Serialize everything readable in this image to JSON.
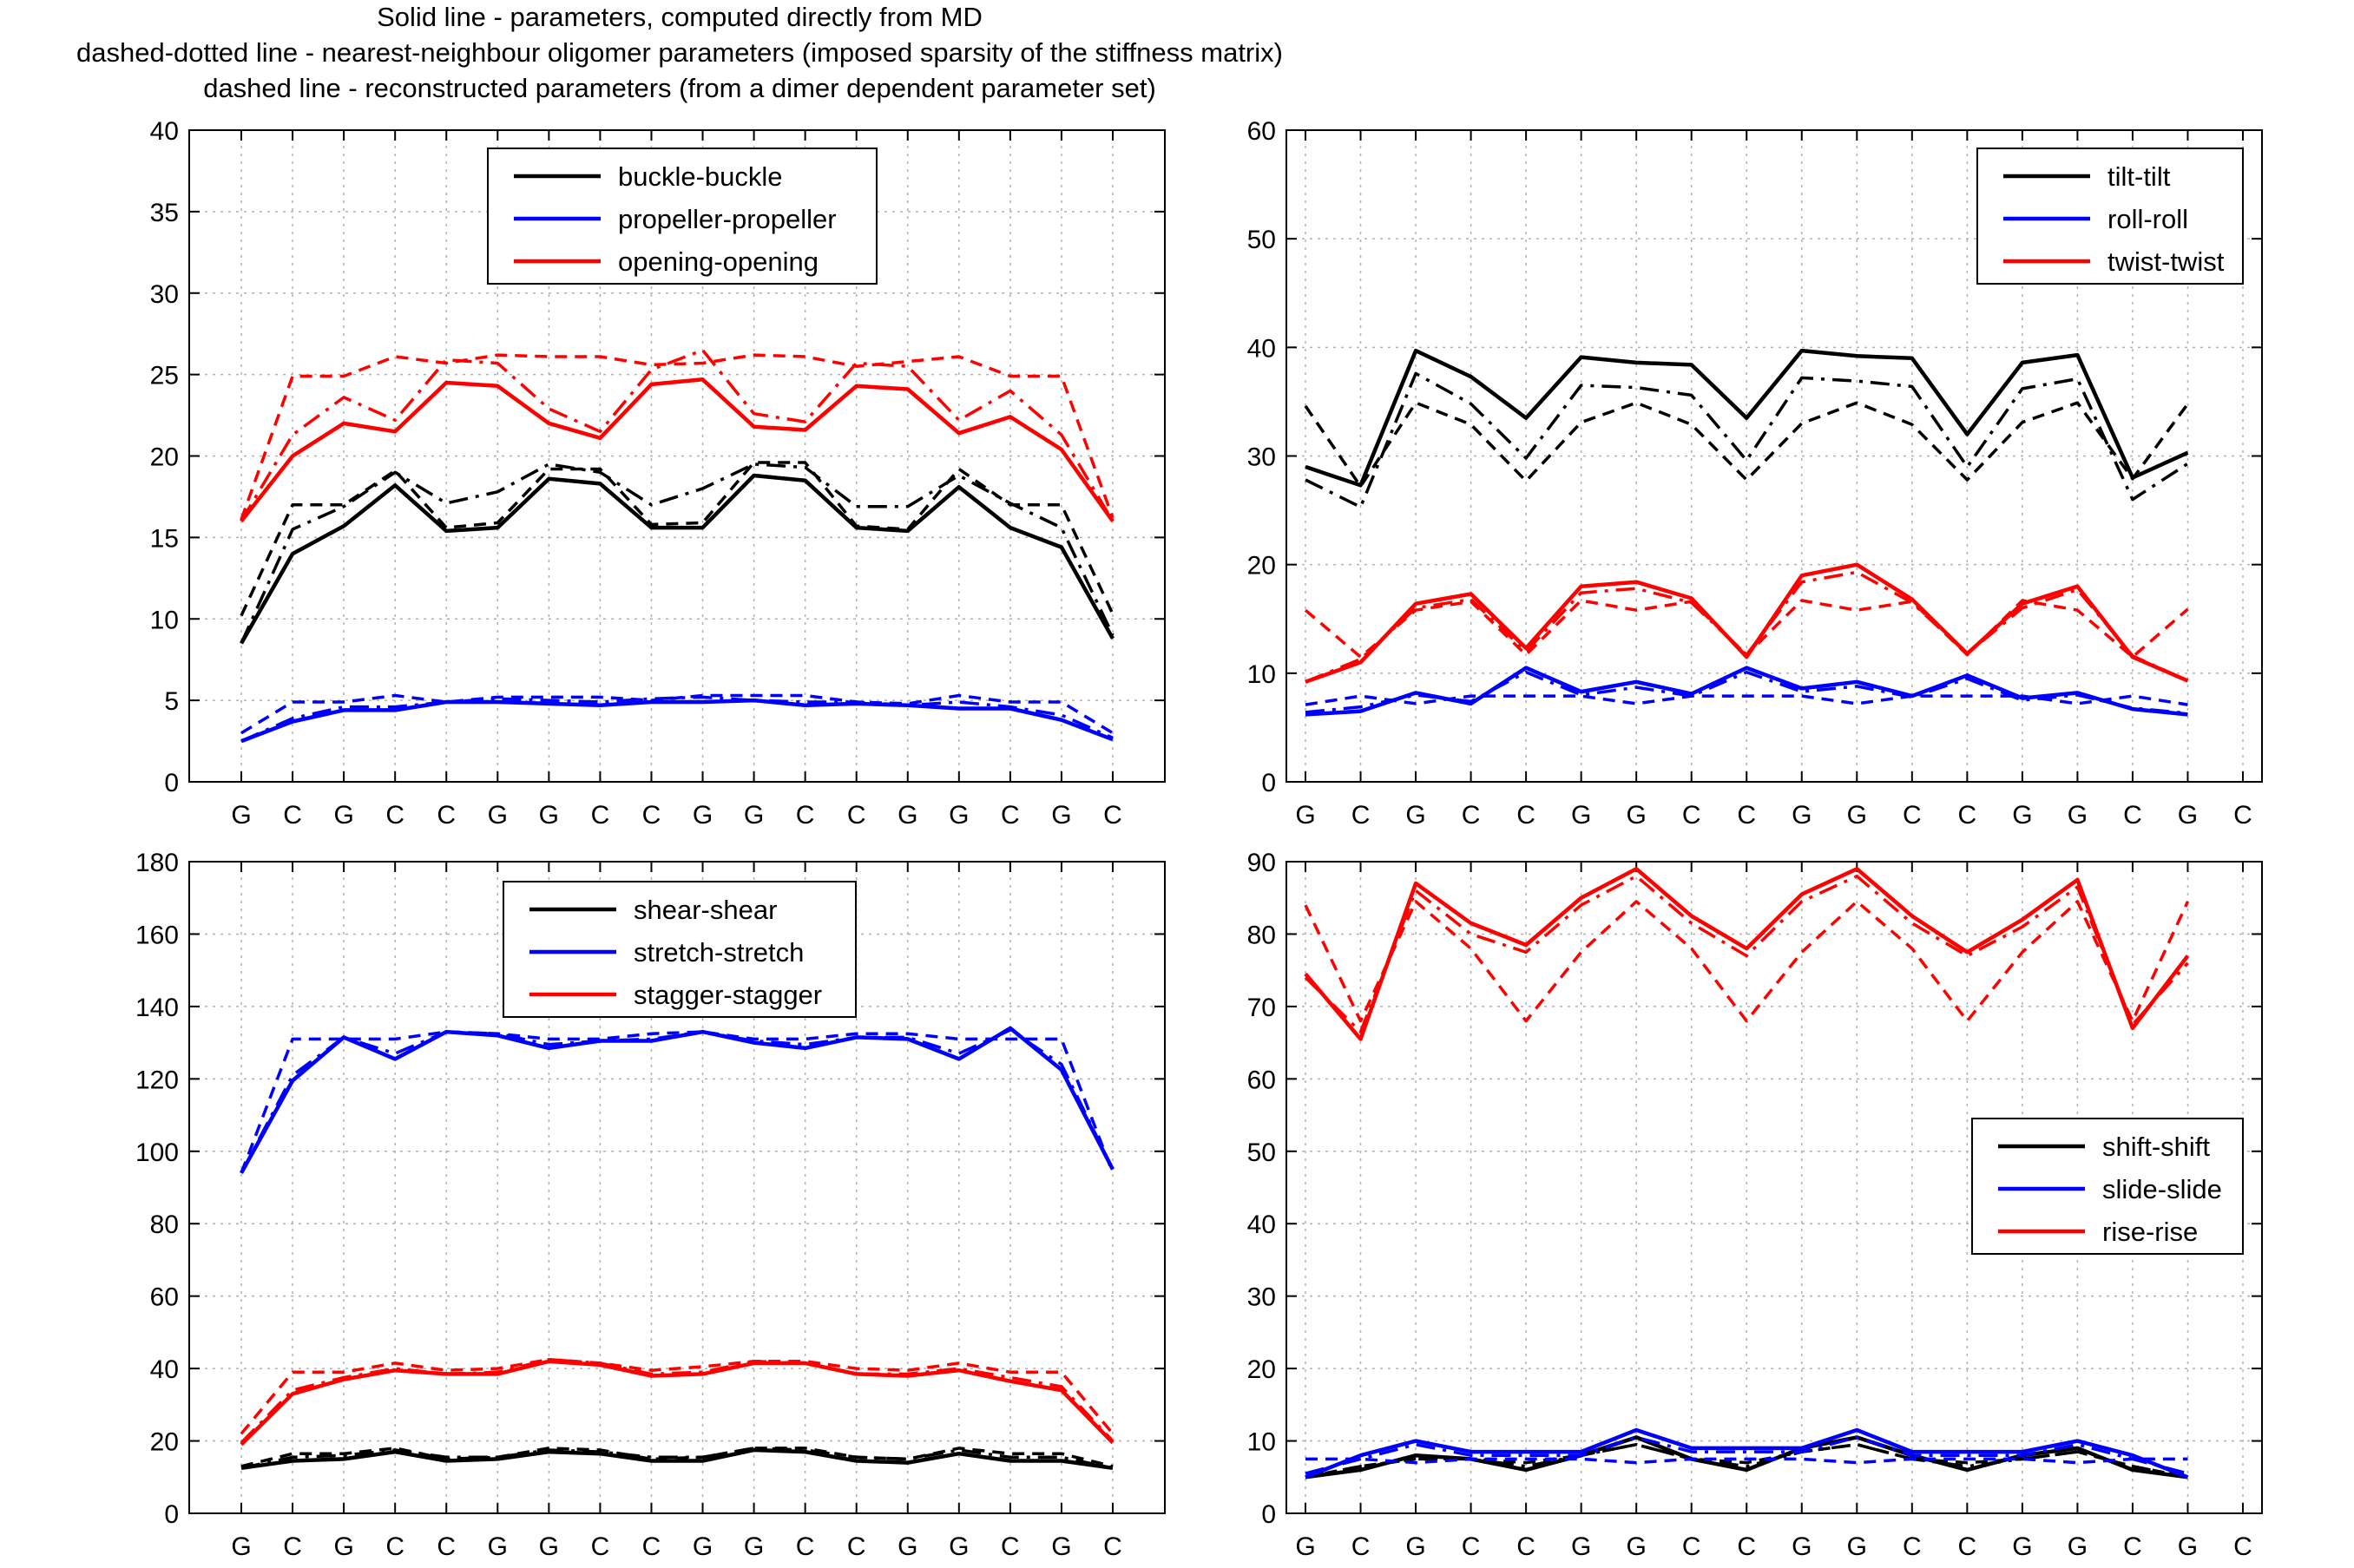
{
  "caption_lines": [
    "Solid line - parameters, computed directly from MD",
    "dashed-dotted line - nearest-neighbour oligomer parameters (imposed sparsity of the stiffness matrix)",
    "dashed line - reconstructed parameters (from a dimer dependent parameter set)"
  ],
  "line_styles": {
    "solid": "Solid line",
    "dashdot": "dashed-dotted line",
    "dashed": "dashed line"
  },
  "colors": {
    "series1": "#000000",
    "series2": "#0000ff",
    "series3": "#ff0000",
    "grid": "#b0b0b0"
  },
  "chart_data": [
    {
      "type": "line",
      "panel": "top-left",
      "categories": [
        "G",
        "C",
        "G",
        "C",
        "C",
        "G",
        "G",
        "C",
        "C",
        "G",
        "G",
        "C",
        "C",
        "G",
        "G",
        "C",
        "G",
        "C"
      ],
      "ylim": [
        0,
        40
      ],
      "yticks": [
        0,
        5,
        10,
        15,
        20,
        25,
        30,
        35,
        40
      ],
      "grid": true,
      "legend": "top-center",
      "series": [
        {
          "name": "buckle-buckle",
          "color": "#000000",
          "solid": [
            8.5,
            14.0,
            15.7,
            18.2,
            15.4,
            15.6,
            18.6,
            18.3,
            15.6,
            15.6,
            18.8,
            18.5,
            15.6,
            15.4,
            18.1,
            15.6,
            14.4,
            8.8
          ],
          "dashdot": [
            8.5,
            15.5,
            16.9,
            19.0,
            17.1,
            17.8,
            19.5,
            19.0,
            17.0,
            18.0,
            19.5,
            19.3,
            16.9,
            16.9,
            18.8,
            17.1,
            15.6,
            9.0
          ],
          "dashed": [
            10.2,
            17.0,
            17.0,
            19.1,
            15.6,
            15.9,
            19.2,
            19.2,
            15.8,
            15.9,
            19.6,
            19.6,
            15.7,
            15.5,
            19.2,
            17.0,
            17.0,
            10.3
          ]
        },
        {
          "name": "propeller-propeller",
          "color": "#0000ff",
          "solid": [
            2.5,
            3.7,
            4.4,
            4.4,
            4.9,
            4.9,
            4.8,
            4.7,
            4.9,
            4.9,
            5.0,
            4.7,
            4.8,
            4.7,
            4.5,
            4.5,
            3.8,
            2.6
          ],
          "dashdot": [
            2.5,
            3.9,
            4.6,
            4.6,
            4.9,
            5.1,
            5.0,
            4.9,
            5.1,
            5.2,
            5.0,
            4.9,
            4.9,
            4.7,
            4.9,
            4.6,
            4.1,
            2.7
          ],
          "dashed": [
            3.0,
            4.9,
            4.9,
            5.3,
            4.9,
            5.2,
            5.2,
            5.2,
            5.0,
            5.3,
            5.3,
            5.3,
            4.9,
            4.8,
            5.3,
            4.9,
            4.9,
            3.0
          ]
        },
        {
          "name": "opening-opening",
          "color": "#ff0000",
          "solid": [
            16.0,
            20.0,
            22.0,
            21.5,
            24.5,
            24.3,
            22.0,
            21.1,
            24.4,
            24.7,
            21.8,
            21.6,
            24.3,
            24.1,
            21.4,
            22.4,
            20.4,
            16.0
          ],
          "dashdot": [
            16.0,
            21.3,
            23.6,
            22.2,
            25.9,
            25.7,
            22.9,
            21.5,
            25.3,
            26.5,
            22.6,
            22.1,
            25.7,
            25.5,
            22.2,
            24.0,
            21.3,
            16.0
          ],
          "dashed": [
            16.1,
            24.9,
            24.9,
            26.1,
            25.7,
            26.2,
            26.1,
            26.1,
            25.6,
            25.7,
            26.2,
            26.1,
            25.5,
            25.8,
            26.1,
            24.9,
            24.9,
            16.2
          ]
        }
      ]
    },
    {
      "type": "line",
      "panel": "top-right",
      "categories": [
        "G",
        "C",
        "G",
        "C",
        "C",
        "G",
        "G",
        "C",
        "C",
        "G",
        "G",
        "C",
        "C",
        "G",
        "G",
        "C",
        "G",
        "C"
      ],
      "ylim": [
        0,
        60
      ],
      "yticks": [
        0,
        10,
        20,
        30,
        40,
        50,
        60
      ],
      "grid": true,
      "legend": "top-right",
      "series": [
        {
          "name": "tilt-tilt",
          "color": "#000000",
          "solid": [
            29.0,
            27.3,
            39.7,
            37.3,
            33.5,
            39.1,
            38.6,
            38.4,
            33.5,
            39.7,
            39.2,
            39.0,
            32.0,
            38.6,
            39.3,
            28.0,
            30.3
          ],
          "dashdot": [
            27.8,
            25.3,
            37.6,
            34.8,
            29.8,
            36.5,
            36.3,
            35.6,
            29.6,
            37.2,
            36.9,
            36.4,
            29.0,
            36.2,
            37.1,
            26.0,
            29.3
          ],
          "dashed": [
            34.6,
            27.2,
            34.9,
            32.9,
            27.7,
            33.1,
            34.9,
            32.9,
            27.8,
            33.0,
            34.9,
            32.9,
            27.8,
            33.1,
            34.9,
            27.9,
            34.8
          ]
        },
        {
          "name": "roll-roll",
          "color": "#0000ff",
          "solid": [
            6.2,
            6.5,
            8.2,
            7.2,
            10.5,
            8.3,
            9.2,
            8.1,
            10.5,
            8.6,
            9.2,
            7.9,
            9.8,
            7.7,
            8.2,
            6.7,
            6.2
          ],
          "dashdot": [
            6.4,
            6.9,
            8.0,
            7.4,
            10.1,
            8.0,
            8.7,
            7.9,
            10.1,
            8.3,
            8.8,
            7.8,
            9.5,
            7.5,
            8.0,
            6.8,
            6.3
          ],
          "dashed": [
            7.1,
            7.9,
            7.2,
            7.9,
            7.9,
            7.9,
            7.2,
            7.9,
            7.9,
            7.9,
            7.2,
            7.9,
            7.9,
            7.9,
            7.2,
            7.9,
            7.1
          ]
        },
        {
          "name": "twist-twist",
          "color": "#ff0000",
          "solid": [
            9.2,
            11.0,
            16.4,
            17.3,
            12.3,
            18.0,
            18.4,
            16.9,
            11.5,
            19.0,
            20.0,
            16.8,
            11.8,
            16.4,
            18.0,
            11.5,
            9.3
          ],
          "dashdot": [
            9.2,
            11.3,
            16.0,
            16.8,
            12.0,
            17.4,
            17.8,
            16.5,
            11.7,
            18.4,
            19.3,
            16.5,
            11.8,
            16.0,
            17.7,
            11.6,
            9.3
          ],
          "dashed": [
            15.8,
            11.5,
            15.8,
            16.6,
            11.7,
            16.7,
            15.8,
            16.6,
            11.7,
            16.7,
            15.8,
            16.6,
            11.7,
            16.7,
            15.8,
            11.5,
            15.9
          ]
        }
      ]
    },
    {
      "type": "line",
      "panel": "bottom-left",
      "categories": [
        "G",
        "C",
        "G",
        "C",
        "C",
        "G",
        "G",
        "C",
        "C",
        "G",
        "G",
        "C",
        "C",
        "G",
        "G",
        "C",
        "G",
        "C"
      ],
      "ylim": [
        0,
        180
      ],
      "yticks": [
        0,
        20,
        40,
        60,
        80,
        100,
        120,
        140,
        160,
        180
      ],
      "grid": true,
      "legend": "top-center",
      "series": [
        {
          "name": "shear-shear",
          "color": "#000000",
          "solid": [
            12.5,
            14.5,
            15.0,
            17.0,
            14.5,
            15.0,
            17.0,
            16.5,
            14.5,
            14.5,
            17.5,
            17.0,
            14.5,
            14.0,
            16.5,
            14.5,
            14.5,
            12.5
          ],
          "dashdot": [
            12.5,
            15.5,
            16.0,
            17.5,
            15.5,
            15.5,
            17.5,
            17.0,
            15.5,
            15.5,
            18.0,
            17.5,
            15.5,
            15.0,
            17.5,
            15.5,
            15.5,
            12.5
          ],
          "dashed": [
            13.0,
            16.5,
            16.5,
            18.0,
            15.0,
            15.5,
            18.0,
            17.5,
            15.0,
            15.5,
            18.0,
            18.0,
            15.5,
            15.0,
            18.0,
            16.5,
            16.5,
            13.0
          ]
        },
        {
          "name": "stretch-stretch",
          "color": "#0000ff",
          "solid": [
            94.0,
            119.5,
            131.5,
            125.5,
            133.0,
            132.0,
            128.5,
            130.5,
            130.5,
            133.0,
            130.0,
            128.5,
            131.5,
            131.0,
            125.5,
            134.0,
            122.5,
            95.0
          ],
          "dashdot": [
            94.0,
            121.0,
            131.5,
            127.0,
            133.0,
            132.5,
            129.5,
            130.5,
            131.0,
            133.0,
            130.5,
            129.5,
            131.5,
            131.5,
            127.0,
            133.5,
            124.0,
            95.0
          ],
          "dashed": [
            94.0,
            131.0,
            131.0,
            131.0,
            133.0,
            132.5,
            131.0,
            131.0,
            132.5,
            133.0,
            131.0,
            131.0,
            132.5,
            132.5,
            131.0,
            131.0,
            131.0,
            94.0
          ]
        },
        {
          "name": "stagger-stagger",
          "color": "#ff0000",
          "solid": [
            19.0,
            33.0,
            37.0,
            39.5,
            38.5,
            38.5,
            42.0,
            41.0,
            38.0,
            38.5,
            41.5,
            41.5,
            38.5,
            38.0,
            39.5,
            36.5,
            34.0,
            19.5
          ],
          "dashdot": [
            19.5,
            34.0,
            37.5,
            40.0,
            38.5,
            39.0,
            42.5,
            41.5,
            38.5,
            39.0,
            42.0,
            41.5,
            38.5,
            38.5,
            40.0,
            37.5,
            35.0,
            20.0
          ],
          "dashed": [
            22.0,
            39.0,
            39.0,
            41.5,
            39.5,
            40.0,
            42.5,
            41.5,
            39.5,
            40.5,
            42.0,
            42.0,
            40.0,
            39.5,
            41.5,
            39.0,
            39.0,
            22.0
          ]
        }
      ]
    },
    {
      "type": "line",
      "panel": "bottom-right",
      "categories": [
        "G",
        "C",
        "G",
        "C",
        "C",
        "G",
        "G",
        "C",
        "C",
        "G",
        "G",
        "C",
        "C",
        "G",
        "G",
        "C",
        "G",
        "C"
      ],
      "ylim": [
        0,
        90
      ],
      "yticks": [
        0,
        10,
        20,
        30,
        40,
        50,
        60,
        70,
        80,
        90
      ],
      "grid": true,
      "legend": "middle-right",
      "series": [
        {
          "name": "shift-shift",
          "color": "#000000",
          "solid": [
            5.0,
            6.0,
            8.0,
            7.5,
            6.0,
            8.0,
            10.5,
            7.5,
            6.0,
            9.0,
            10.5,
            8.0,
            6.0,
            8.0,
            9.0,
            6.0,
            5.0
          ],
          "dashdot": [
            5.0,
            6.5,
            7.5,
            7.5,
            6.5,
            8.0,
            9.5,
            7.5,
            6.5,
            8.5,
            9.5,
            7.5,
            6.5,
            7.5,
            8.5,
            6.5,
            5.0
          ],
          "dashed": [
            5.0,
            6.5,
            7.5,
            7.5,
            7.0,
            8.0,
            9.5,
            7.5,
            7.0,
            8.5,
            9.5,
            7.5,
            7.0,
            7.5,
            8.5,
            6.5,
            5.0
          ]
        },
        {
          "name": "slide-slide",
          "color": "#0000ff",
          "solid": [
            5.0,
            8.0,
            10.0,
            8.5,
            8.5,
            8.5,
            11.5,
            9.0,
            9.0,
            9.0,
            11.5,
            8.5,
            8.5,
            8.5,
            10.0,
            8.0,
            5.0
          ],
          "dashdot": [
            5.5,
            7.5,
            9.5,
            8.0,
            8.0,
            8.0,
            10.5,
            8.5,
            8.5,
            8.5,
            10.5,
            8.0,
            8.0,
            8.0,
            9.5,
            7.5,
            5.5
          ],
          "dashed": [
            7.5,
            7.5,
            7.0,
            7.5,
            7.5,
            7.5,
            7.0,
            7.5,
            7.5,
            7.5,
            7.0,
            7.5,
            7.5,
            7.5,
            7.0,
            7.5,
            7.5
          ]
        },
        {
          "name": "rise-rise",
          "color": "#ff0000",
          "solid": [
            74.5,
            65.5,
            87.0,
            81.5,
            78.5,
            85.0,
            89.0,
            82.5,
            78.0,
            85.5,
            89.0,
            82.5,
            77.5,
            82.0,
            87.5,
            67.0,
            77.0
          ],
          "dashdot": [
            74.0,
            66.5,
            86.0,
            80.0,
            77.5,
            84.0,
            88.0,
            81.5,
            77.0,
            84.5,
            88.0,
            81.5,
            77.0,
            81.0,
            86.5,
            67.5,
            76.0
          ],
          "dashed": [
            84.0,
            68.0,
            84.5,
            78.0,
            68.0,
            77.5,
            84.5,
            78.0,
            68.0,
            77.5,
            84.5,
            78.0,
            68.0,
            77.5,
            84.5,
            68.0,
            84.5
          ]
        }
      ]
    }
  ]
}
